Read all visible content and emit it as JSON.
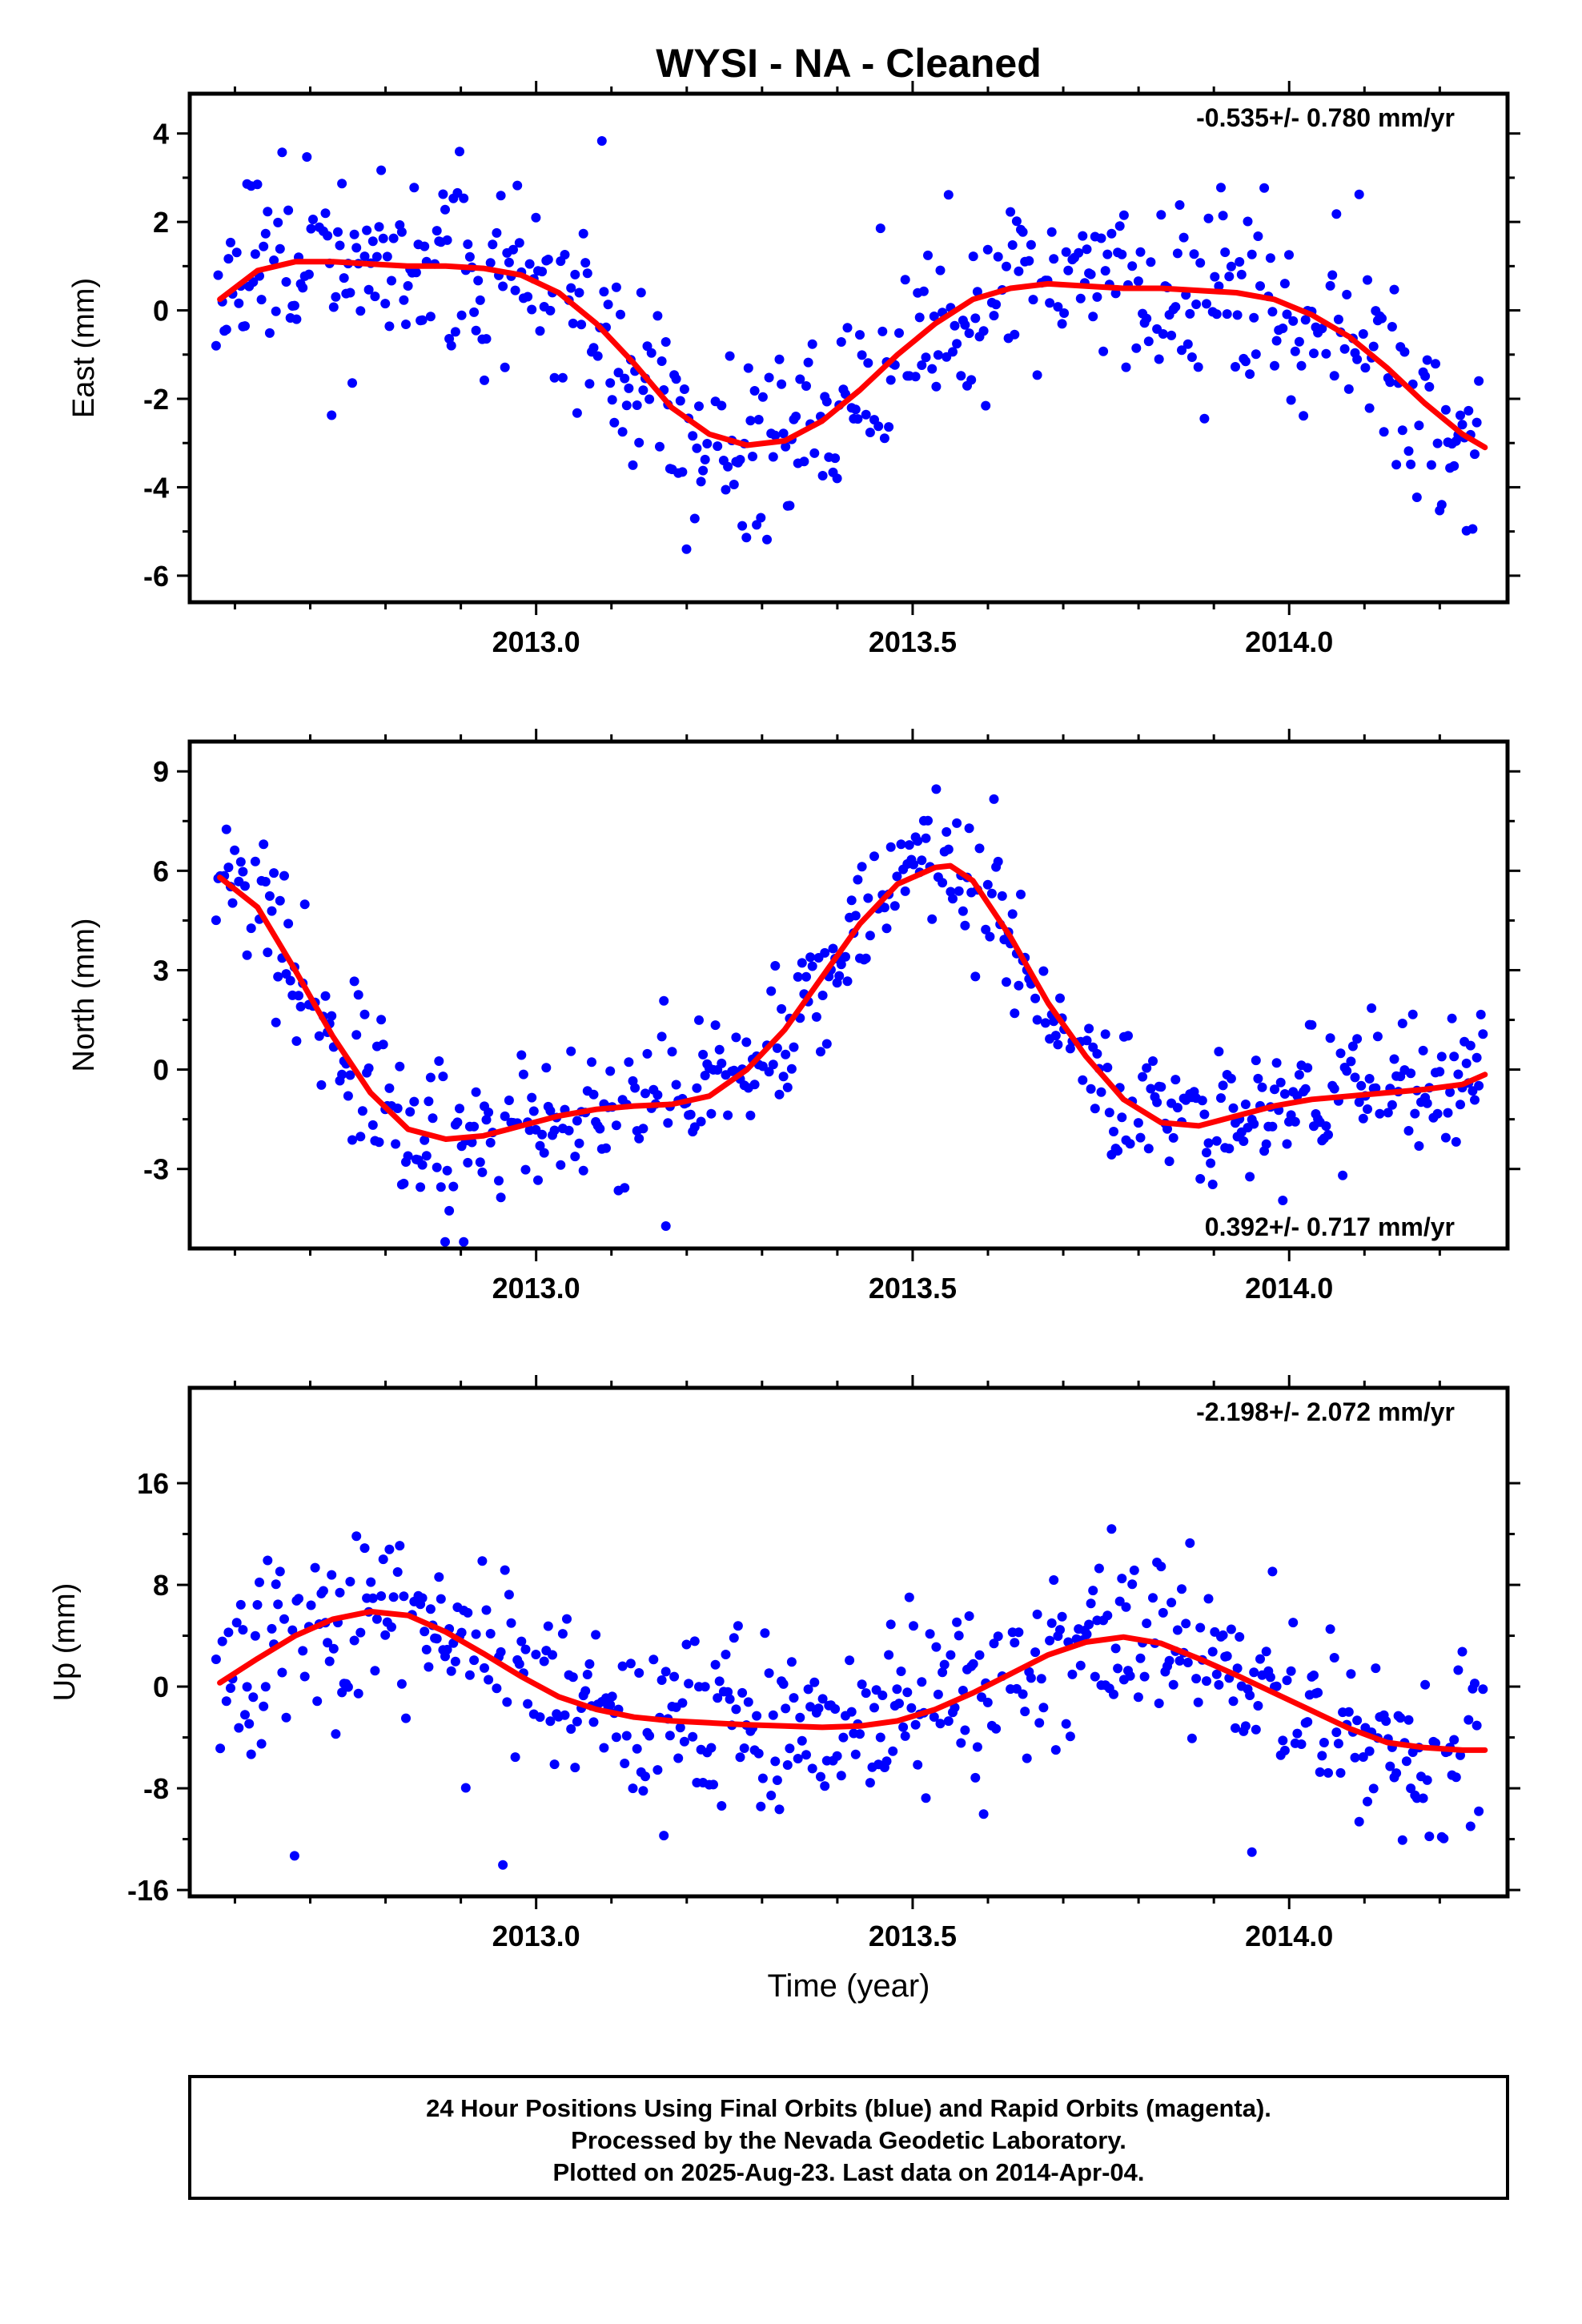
{
  "title": "WYSI  - NA - Cleaned",
  "colors": {
    "final_orbits": "#0000ff",
    "fit": "#ff0000",
    "frame": "#000000"
  },
  "chart_data": [
    {
      "type": "scatter",
      "ylabel": "East (mm)",
      "rate": "-0.535+/- 0.780 mm/yr",
      "rate_position": "top-right",
      "xlim": [
        2012.54,
        2014.29
      ],
      "ylim": [
        -6.6,
        4.9
      ],
      "x_ticks": [
        2013.0,
        2013.5,
        2014.0
      ],
      "x_tick_labels": [
        "2013.0",
        "2013.5",
        "2014.0"
      ],
      "y_ticks": [
        4,
        2,
        0,
        -2,
        -4,
        -6
      ],
      "y_tick_labels": [
        "4",
        "2",
        "0",
        "-2",
        "-4",
        "-6"
      ],
      "fit_x": [
        2012.58,
        2012.63,
        2012.68,
        2012.73,
        2012.78,
        2012.83,
        2012.88,
        2012.93,
        2012.98,
        2013.03,
        2013.08,
        2013.13,
        2013.18,
        2013.23,
        2013.28,
        2013.33,
        2013.38,
        2013.43,
        2013.48,
        2013.53,
        2013.58,
        2013.63,
        2013.68,
        2013.73,
        2013.78,
        2013.83,
        2013.88,
        2013.93,
        2013.98,
        2014.03,
        2014.08,
        2014.13,
        2014.18,
        2014.23,
        2014.26
      ],
      "fit_y": [
        0.25,
        0.9,
        1.1,
        1.1,
        1.05,
        1.0,
        1.0,
        0.95,
        0.8,
        0.4,
        -0.3,
        -1.2,
        -2.2,
        -2.8,
        -3.05,
        -2.95,
        -2.5,
        -1.8,
        -1.0,
        -0.3,
        0.25,
        0.5,
        0.6,
        0.55,
        0.5,
        0.5,
        0.45,
        0.4,
        0.25,
        -0.1,
        -0.6,
        -1.3,
        -2.1,
        -2.8,
        -3.1
      ],
      "seed": 11,
      "noise": 1.1
    },
    {
      "type": "scatter",
      "ylabel": "North (mm)",
      "rate": "0.392+/- 0.717 mm/yr",
      "rate_position": "bottom-right",
      "xlim": [
        2012.54,
        2014.29
      ],
      "ylim": [
        -5.4,
        9.9
      ],
      "x_ticks": [
        2013.0,
        2013.5,
        2014.0
      ],
      "x_tick_labels": [
        "2013.0",
        "2013.5",
        "2014.0"
      ],
      "y_ticks": [
        9,
        6,
        3,
        0,
        -3
      ],
      "y_tick_labels": [
        "9",
        "6",
        "3",
        "0",
        "-3"
      ],
      "fit_x": [
        2012.58,
        2012.63,
        2012.68,
        2012.73,
        2012.78,
        2012.83,
        2012.88,
        2012.93,
        2012.98,
        2013.03,
        2013.08,
        2013.13,
        2013.18,
        2013.23,
        2013.28,
        2013.33,
        2013.38,
        2013.43,
        2013.48,
        2013.53,
        2013.55,
        2013.58,
        2013.63,
        2013.68,
        2013.73,
        2013.78,
        2013.83,
        2013.88,
        2013.93,
        2013.98,
        2014.03,
        2014.08,
        2014.13,
        2014.18,
        2014.23,
        2014.26
      ],
      "fit_y": [
        5.8,
        4.9,
        3.0,
        1.0,
        -0.7,
        -1.8,
        -2.1,
        -2.0,
        -1.7,
        -1.4,
        -1.2,
        -1.1,
        -1.05,
        -0.8,
        0.0,
        1.2,
        2.8,
        4.4,
        5.6,
        6.1,
        6.15,
        5.7,
        4.0,
        2.0,
        0.4,
        -0.9,
        -1.6,
        -1.7,
        -1.4,
        -1.1,
        -0.9,
        -0.8,
        -0.7,
        -0.6,
        -0.45,
        -0.15
      ],
      "seed": 23,
      "noise": 1.0
    },
    {
      "type": "scatter",
      "ylabel": "Up (mm)",
      "xlabel": "Time (year)",
      "rate": "-2.198+/- 2.072 mm/yr",
      "rate_position": "top-right",
      "xlim": [
        2012.54,
        2014.29
      ],
      "ylim": [
        -16.5,
        23.5
      ],
      "x_ticks": [
        2013.0,
        2013.5,
        2014.0
      ],
      "x_tick_labels": [
        "2013.0",
        "2013.5",
        "2014.0"
      ],
      "y_ticks": [
        16,
        8,
        0,
        -8,
        -16
      ],
      "y_tick_labels": [
        "16",
        "8",
        "0",
        "-8",
        "-16"
      ],
      "fit_x": [
        2012.58,
        2012.63,
        2012.68,
        2012.73,
        2012.78,
        2012.83,
        2012.88,
        2012.93,
        2012.98,
        2013.03,
        2013.08,
        2013.13,
        2013.18,
        2013.23,
        2013.28,
        2013.33,
        2013.38,
        2013.43,
        2013.48,
        2013.53,
        2013.58,
        2013.63,
        2013.68,
        2013.73,
        2013.78,
        2013.83,
        2013.88,
        2013.93,
        2013.98,
        2014.03,
        2014.08,
        2014.13,
        2014.18,
        2014.23,
        2014.26
      ],
      "fit_y": [
        0.3,
        2.2,
        4.0,
        5.3,
        5.9,
        5.6,
        4.3,
        2.6,
        0.8,
        -0.8,
        -1.8,
        -2.4,
        -2.7,
        -2.85,
        -3.0,
        -3.1,
        -3.2,
        -3.1,
        -2.7,
        -1.8,
        -0.5,
        1.0,
        2.5,
        3.5,
        3.9,
        3.4,
        2.2,
        0.9,
        -0.5,
        -1.9,
        -3.3,
        -4.4,
        -4.8,
        -5.0,
        -5.0
      ],
      "seed": 37,
      "noise": 3.4
    }
  ],
  "footer": {
    "line1": "24 Hour Positions Using Final Orbits (blue) and Rapid Orbits (magenta).",
    "line2": "Processed by the Nevada Geodetic Laboratory.",
    "line3": "Plotted on 2025-Aug-23. Last data on 2014-Apr-04."
  }
}
